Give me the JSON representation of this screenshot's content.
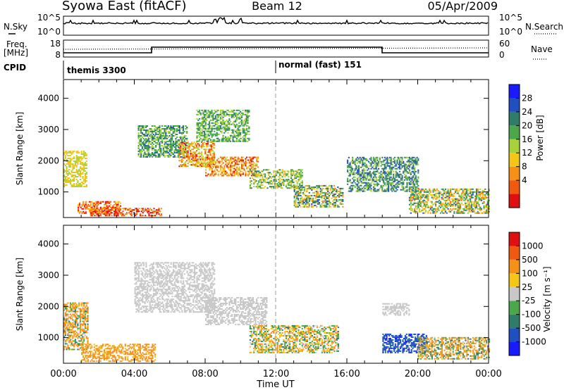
{
  "header": {
    "title": "Syowa East (fitACF)",
    "beam": "Beam 12",
    "date": "05/Apr/2009"
  },
  "noise_panel": {
    "left_label": "N.Sky",
    "right_label": "N.Search",
    "left_ticks": [
      "10^5",
      "10^0"
    ],
    "right_ticks": [
      "10^5",
      "10^0"
    ]
  },
  "freq_panel": {
    "left_label_line1": "Freq.",
    "left_label_line2": "[MHz]",
    "right_label": "Nave",
    "left_ticks": [
      "18",
      "8"
    ],
    "right_ticks": [
      "60",
      "0"
    ]
  },
  "cpid": {
    "label": "CPID",
    "modes": [
      {
        "name": "themis 3300",
        "start": 0
      },
      {
        "name": "normal (fast) 151",
        "start": 12
      }
    ]
  },
  "colors": {
    "power_scale": [
      "#1a1aff",
      "#2050c0",
      "#2e7d6a",
      "#4aa84a",
      "#a8d23c",
      "#f5c518",
      "#f59018",
      "#f05a10",
      "#e01010"
    ],
    "velocity_scale": [
      "#1a1aff",
      "#2050c0",
      "#2e7d6a",
      "#4aa84a",
      "#c8c8c8",
      "#f5c518",
      "#f59018",
      "#f05a10",
      "#e01010"
    ]
  },
  "power_colorbar": {
    "title": "Power [dB]",
    "ticks": [
      "28",
      "24",
      "20",
      "16",
      "12",
      "8",
      "4"
    ]
  },
  "velocity_colorbar": {
    "title": "Velocity  [m s⁻¹]",
    "ticks": [
      "1000",
      "500",
      "100",
      "25",
      "-25",
      "-100",
      "-500",
      "-1000"
    ]
  },
  "chart_data": [
    {
      "type": "heatmap",
      "title": "",
      "xlabel": "Time UT",
      "ylabel": "Slant Range [km]",
      "xlim": [
        0,
        24
      ],
      "ylim": [
        180,
        4600
      ],
      "x_ticks": [
        "00:00",
        "04:00",
        "08:00",
        "12:00",
        "16:00",
        "20:00",
        "00:00"
      ],
      "y_ticks": [
        1000,
        2000,
        3000,
        4000
      ],
      "quantity": "Power [dB]",
      "clim": [
        0,
        30
      ],
      "bands": [
        {
          "t0": 0.0,
          "t1": 1.3,
          "r0": 1150,
          "r1": 2300,
          "v0": 14,
          "v1": 20
        },
        {
          "t0": 0.8,
          "t1": 3.2,
          "r0": 300,
          "r1": 700,
          "v0": 18,
          "v1": 30
        },
        {
          "t0": 1.5,
          "t1": 5.5,
          "r0": 220,
          "r1": 450,
          "v0": 20,
          "v1": 30
        },
        {
          "t0": 4.2,
          "t1": 7.0,
          "r0": 2100,
          "r1": 3100,
          "v0": 6,
          "v1": 16
        },
        {
          "t0": 6.5,
          "t1": 8.5,
          "r0": 1800,
          "r1": 2600,
          "v0": 14,
          "v1": 28
        },
        {
          "t0": 8.0,
          "t1": 11.0,
          "r0": 1500,
          "r1": 2100,
          "v0": 16,
          "v1": 28
        },
        {
          "t0": 7.5,
          "t1": 10.5,
          "r0": 2600,
          "r1": 3600,
          "v0": 8,
          "v1": 16
        },
        {
          "t0": 10.5,
          "t1": 13.5,
          "r0": 1100,
          "r1": 1700,
          "v0": 8,
          "v1": 20
        },
        {
          "t0": 13.0,
          "t1": 15.8,
          "r0": 500,
          "r1": 1200,
          "v0": 4,
          "v1": 22
        },
        {
          "t0": 16.0,
          "t1": 20.0,
          "r0": 1000,
          "r1": 2100,
          "v0": 4,
          "v1": 16
        },
        {
          "t0": 19.5,
          "t1": 24.0,
          "r0": 300,
          "r1": 1100,
          "v0": 6,
          "v1": 24
        }
      ]
    },
    {
      "type": "heatmap",
      "title": "",
      "xlabel": "Time UT",
      "ylabel": "Slant Range [km]",
      "xlim": [
        0,
        24
      ],
      "ylim": [
        180,
        4600
      ],
      "x_ticks": [
        "00:00",
        "04:00",
        "08:00",
        "12:00",
        "16:00",
        "20:00",
        "00:00"
      ],
      "y_ticks": [
        1000,
        2000,
        3000,
        4000
      ],
      "quantity": "Velocity [m s^-1]",
      "color_levels": [
        1000,
        500,
        100,
        25,
        -25,
        -100,
        -500,
        -1000
      ],
      "bands": [
        {
          "t0": 0.0,
          "t1": 1.4,
          "r0": 600,
          "r1": 2100,
          "v0": -500,
          "v1": 200
        },
        {
          "t0": 1.0,
          "t1": 5.2,
          "r0": 220,
          "r1": 800,
          "v0": -300,
          "v1": -50
        },
        {
          "t0": 4.0,
          "t1": 8.5,
          "r0": 1800,
          "r1": 3400,
          "v0": -20,
          "v1": 20
        },
        {
          "t0": 8.0,
          "t1": 11.5,
          "r0": 1400,
          "r1": 2300,
          "v0": -20,
          "v1": 20
        },
        {
          "t0": 10.5,
          "t1": 15.5,
          "r0": 500,
          "r1": 1400,
          "v0": -200,
          "v1": 150
        },
        {
          "t0": 18.0,
          "t1": 19.5,
          "r0": 1700,
          "r1": 2100,
          "v0": -20,
          "v1": 20
        },
        {
          "t0": 18.0,
          "t1": 20.5,
          "r0": 500,
          "r1": 1100,
          "v0": 400,
          "v1": 1100
        },
        {
          "t0": 20.0,
          "t1": 24.0,
          "r0": 300,
          "r1": 1000,
          "v0": -400,
          "v1": 200
        }
      ]
    }
  ]
}
